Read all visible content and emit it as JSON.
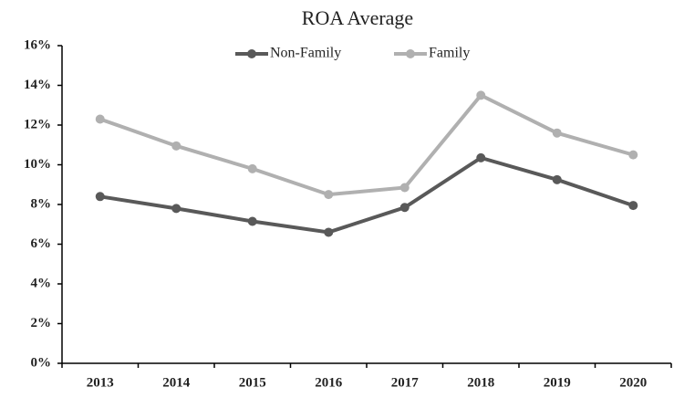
{
  "chart_data": {
    "type": "line",
    "title": "ROA Average",
    "categories": [
      "2013",
      "2014",
      "2015",
      "2016",
      "2017",
      "2018",
      "2019",
      "2020"
    ],
    "series": [
      {
        "name": "Non-Family",
        "color": "#595959",
        "values": [
          8.4,
          7.8,
          7.15,
          6.6,
          7.85,
          10.35,
          9.25,
          7.95
        ]
      },
      {
        "name": "Family",
        "color": "#b0b0b0",
        "values": [
          12.3,
          10.95,
          9.8,
          8.5,
          8.85,
          13.5,
          11.6,
          10.5
        ]
      }
    ],
    "ylim": [
      0,
      16
    ],
    "yticks": [
      {
        "value": 0,
        "label": "0%"
      },
      {
        "value": 2,
        "label": "2%"
      },
      {
        "value": 4,
        "label": "4%"
      },
      {
        "value": 6,
        "label": "6%"
      },
      {
        "value": 8,
        "label": "8%"
      },
      {
        "value": 10,
        "label": "10%"
      },
      {
        "value": 12,
        "label": "12%"
      },
      {
        "value": 14,
        "label": "14%"
      },
      {
        "value": 16,
        "label": "16%"
      }
    ],
    "legend": "top"
  }
}
